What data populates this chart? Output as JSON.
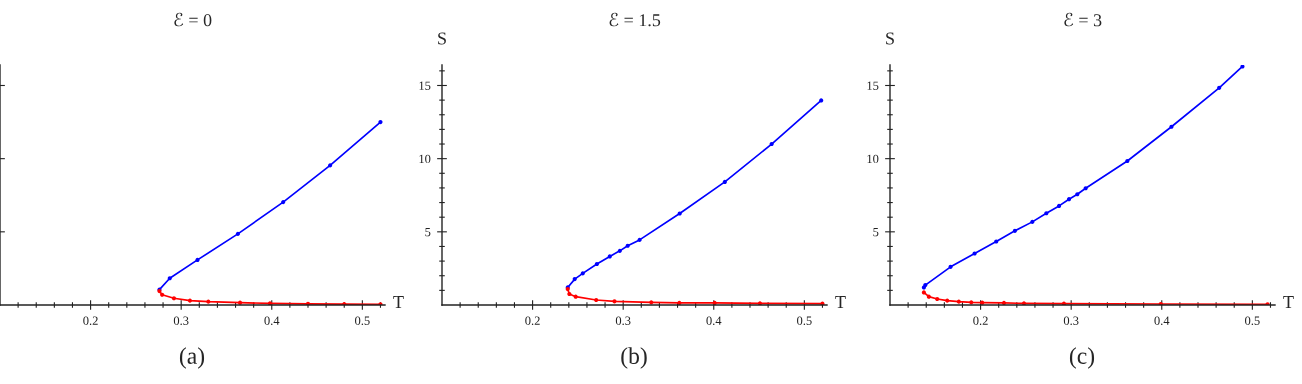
{
  "chart_data": [
    {
      "type": "line",
      "title": "ℰ = 0",
      "xlabel": "T",
      "annotations": [
        "(a)"
      ],
      "marker": "circle",
      "tick_labels": "x",
      "xlim": [
        0.1,
        0.525
      ],
      "ylim": [
        0,
        16.4
      ],
      "xticks": [
        {
          "value": 0.12,
          "label": null
        },
        {
          "value": 0.14,
          "label": null
        },
        {
          "value": 0.16,
          "label": null
        },
        {
          "value": 0.18,
          "label": null
        },
        0.2,
        {
          "value": 0.22,
          "label": null
        },
        {
          "value": 0.24,
          "label": null
        },
        {
          "value": 0.26,
          "label": null
        },
        {
          "value": 0.28,
          "label": null
        },
        0.3,
        {
          "value": 0.32,
          "label": null
        },
        {
          "value": 0.34,
          "label": null
        },
        {
          "value": 0.36,
          "label": null
        },
        {
          "value": 0.38,
          "label": null
        },
        0.4,
        {
          "value": 0.42,
          "label": null
        },
        {
          "value": 0.44,
          "label": null
        },
        {
          "value": 0.46,
          "label": null
        },
        {
          "value": 0.48,
          "label": null
        },
        0.5,
        {
          "value": 0.52,
          "label": null
        }
      ],
      "yticks": [
        {
          "value": 5,
          "label": null
        },
        {
          "value": 10,
          "label": null
        },
        {
          "value": 15,
          "label": null
        }
      ],
      "series": [
        {
          "color": "#0000ff",
          "x": [
            0.276,
            0.2874,
            0.318,
            0.3626,
            0.4126,
            0.4644,
            0.52
          ],
          "values": [
            1.05,
            1.83,
            3.08,
            4.86,
            7.03,
            9.54,
            12.5
          ]
        },
        {
          "color": "#ff0000",
          "x": [
            0.276,
            0.279,
            0.292,
            0.3097,
            0.33,
            0.365,
            0.398,
            0.44,
            0.48,
            0.52
          ],
          "values": [
            0.95,
            0.7,
            0.46,
            0.3,
            0.23,
            0.16,
            0.11,
            0.08,
            0.06,
            0.05
          ]
        }
      ]
    },
    {
      "type": "line",
      "title": "ℰ = 1.5",
      "xlabel": "T",
      "ylabel": "S",
      "annotations": [
        "(b)"
      ],
      "marker": "circle",
      "xlim": [
        0.1,
        0.525
      ],
      "ylim": [
        0,
        16.4
      ],
      "xticks": [
        {
          "value": 0.12,
          "label": null
        },
        {
          "value": 0.14,
          "label": null
        },
        {
          "value": 0.16,
          "label": null
        },
        {
          "value": 0.18,
          "label": null
        },
        0.2,
        {
          "value": 0.22,
          "label": null
        },
        {
          "value": 0.24,
          "label": null
        },
        {
          "value": 0.26,
          "label": null
        },
        {
          "value": 0.28,
          "label": null
        },
        0.3,
        {
          "value": 0.32,
          "label": null
        },
        {
          "value": 0.34,
          "label": null
        },
        {
          "value": 0.36,
          "label": null
        },
        {
          "value": 0.38,
          "label": null
        },
        0.4,
        {
          "value": 0.42,
          "label": null
        },
        {
          "value": 0.44,
          "label": null
        },
        {
          "value": 0.46,
          "label": null
        },
        {
          "value": 0.48,
          "label": null
        },
        0.5,
        {
          "value": 0.52,
          "label": null
        }
      ],
      "yticks": [
        {
          "value": 1,
          "label": null
        },
        {
          "value": 2,
          "label": null
        },
        {
          "value": 3,
          "label": null
        },
        {
          "value": 4,
          "label": null
        },
        5,
        {
          "value": 6,
          "label": null
        },
        {
          "value": 7,
          "label": null
        },
        {
          "value": 8,
          "label": null
        },
        {
          "value": 9,
          "label": null
        },
        10,
        {
          "value": 11,
          "label": null
        },
        {
          "value": 12,
          "label": null
        },
        {
          "value": 13,
          "label": null
        },
        {
          "value": 14,
          "label": null
        },
        15,
        {
          "value": 16,
          "label": null
        }
      ],
      "series": [
        {
          "color": "#0000ff",
          "x": [
            0.2388,
            0.2465,
            0.2554,
            0.271,
            0.2852,
            0.2963,
            0.305,
            0.3181,
            0.3624,
            0.4122,
            0.4639,
            0.5186
          ],
          "values": [
            1.2,
            1.77,
            2.16,
            2.8,
            3.32,
            3.7,
            4.05,
            4.45,
            6.25,
            8.41,
            11.0,
            13.98
          ]
        },
        {
          "color": "#ff0000",
          "x": [
            0.2388,
            0.2406,
            0.2476,
            0.2702,
            0.2904,
            0.331,
            0.362,
            0.401,
            0.451,
            0.52
          ],
          "values": [
            1.09,
            0.75,
            0.57,
            0.34,
            0.25,
            0.18,
            0.14,
            0.14,
            0.11,
            0.09
          ]
        }
      ]
    },
    {
      "type": "line",
      "title": "ℰ = 3",
      "xlabel": "T",
      "ylabel": "S",
      "annotations": [
        "(c)"
      ],
      "marker": "circle",
      "xlim": [
        0.1,
        0.525
      ],
      "ylim": [
        0,
        16.4
      ],
      "xticks": [
        {
          "value": 0.12,
          "label": null
        },
        {
          "value": 0.14,
          "label": null
        },
        {
          "value": 0.16,
          "label": null
        },
        {
          "value": 0.18,
          "label": null
        },
        0.2,
        {
          "value": 0.22,
          "label": null
        },
        {
          "value": 0.24,
          "label": null
        },
        {
          "value": 0.26,
          "label": null
        },
        {
          "value": 0.28,
          "label": null
        },
        0.3,
        {
          "value": 0.32,
          "label": null
        },
        {
          "value": 0.34,
          "label": null
        },
        {
          "value": 0.36,
          "label": null
        },
        {
          "value": 0.38,
          "label": null
        },
        0.4,
        {
          "value": 0.42,
          "label": null
        },
        {
          "value": 0.44,
          "label": null
        },
        {
          "value": 0.46,
          "label": null
        },
        {
          "value": 0.48,
          "label": null
        },
        0.5,
        {
          "value": 0.52,
          "label": null
        }
      ],
      "yticks": [
        {
          "value": 1,
          "label": null
        },
        {
          "value": 2,
          "label": null
        },
        {
          "value": 3,
          "label": null
        },
        {
          "value": 4,
          "label": null
        },
        5,
        {
          "value": 6,
          "label": null
        },
        {
          "value": 7,
          "label": null
        },
        {
          "value": 8,
          "label": null
        },
        {
          "value": 9,
          "label": null
        },
        10,
        {
          "value": 11,
          "label": null
        },
        {
          "value": 12,
          "label": null
        },
        {
          "value": 13,
          "label": null
        },
        {
          "value": 14,
          "label": null
        },
        15,
        {
          "value": 16,
          "label": null
        }
      ],
      "series": [
        {
          "color": "#0000ff",
          "x": [
            0.1374,
            0.139,
            0.1669,
            0.1934,
            0.2173,
            0.2379,
            0.2571,
            0.2726,
            0.2866,
            0.2976,
            0.3068,
            0.316,
            0.362,
            0.4107,
            0.4634,
            0.4891
          ],
          "values": [
            1.2,
            1.36,
            2.61,
            3.52,
            4.34,
            5.07,
            5.68,
            6.27,
            6.77,
            7.23,
            7.57,
            7.98,
            9.84,
            12.18,
            14.84,
            16.3
          ]
        },
        {
          "color": "#ff0000",
          "x": [
            0.1374,
            0.1429,
            0.1521,
            0.1632,
            0.176,
            0.1897,
            0.2018,
            0.2258,
            0.2479,
            0.292,
            0.3989,
            0.5168
          ],
          "values": [
            0.86,
            0.57,
            0.41,
            0.3,
            0.23,
            0.18,
            0.16,
            0.14,
            0.11,
            0.09,
            0.07,
            0.05
          ]
        }
      ]
    }
  ]
}
